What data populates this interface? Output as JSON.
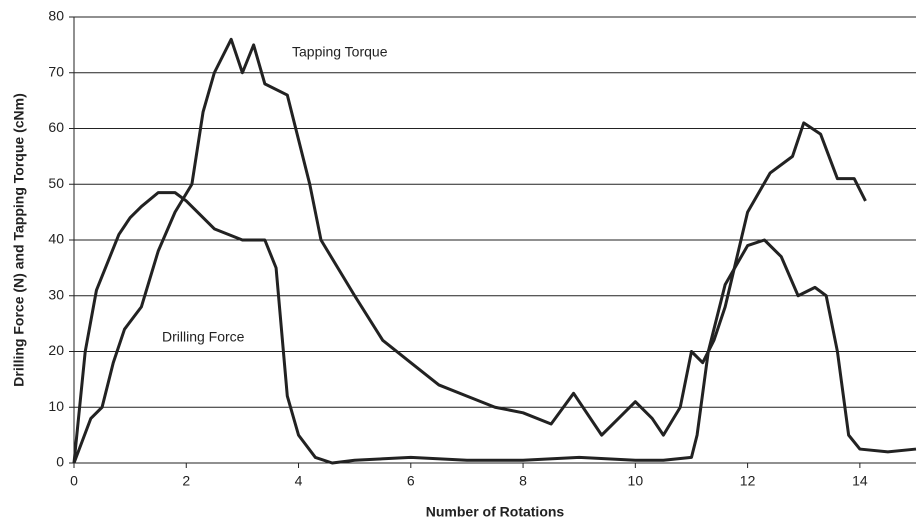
{
  "chart_data": {
    "type": "line",
    "x_label": "Number of Rotations",
    "y_label": "Drilling Force (N) and Tapping Torque (cNm)",
    "xlim": [
      0,
      15
    ],
    "xticks": [
      0,
      2,
      4,
      6,
      8,
      10,
      12,
      14
    ],
    "ylim": [
      0,
      80
    ],
    "yticks": [
      0,
      10,
      20,
      30,
      40,
      50,
      60,
      70,
      80
    ],
    "grid": true,
    "series": [
      {
        "name": "Drilling Force",
        "color": "#222222",
        "x": [
          0,
          0.2,
          0.4,
          0.6,
          0.8,
          1.0,
          1.2,
          1.5,
          1.8,
          2.0,
          2.5,
          3.0,
          3.4,
          3.6,
          3.8,
          4.0,
          4.3,
          4.6,
          5,
          6,
          7,
          8,
          9,
          10,
          10.5,
          11,
          11.1,
          11.3,
          11.6,
          12,
          12.3,
          12.6,
          12.9,
          13.2,
          13.4,
          13.6,
          13.8,
          14,
          14.5,
          15
        ],
        "values": [
          0,
          20,
          31,
          36,
          41,
          44,
          46,
          48.5,
          48.5,
          47,
          42,
          40,
          40,
          35,
          12,
          5,
          1,
          0,
          0.5,
          1,
          0.5,
          0.5,
          1,
          0.5,
          0.5,
          1,
          5,
          20,
          32,
          39,
          40,
          37,
          30,
          31.5,
          30,
          20,
          5,
          2.5,
          2,
          2.5
        ]
      },
      {
        "name": "Tapping Torque",
        "color": "#222222",
        "x": [
          0,
          0.3,
          0.5,
          0.7,
          0.9,
          1.2,
          1.5,
          1.8,
          2.1,
          2.3,
          2.5,
          2.8,
          3.0,
          3.2,
          3.4,
          3.8,
          4.0,
          4.2,
          4.4,
          4.7,
          5.0,
          5.5,
          6.0,
          6.5,
          7.0,
          7.5,
          8.0,
          8.5,
          8.9,
          9.4,
          9.7,
          10.0,
          10.3,
          10.5,
          10.8,
          11.0,
          11.2,
          11.4,
          11.6,
          12.0,
          12.4,
          12.8,
          13.0,
          13.3,
          13.6,
          13.9,
          14.1
        ],
        "values": [
          0,
          8,
          10,
          18,
          24,
          28,
          38,
          45,
          50,
          63,
          70,
          76,
          70,
          75,
          68,
          66,
          58,
          50,
          40,
          35,
          30,
          22,
          18,
          14,
          12,
          10,
          9,
          7,
          12.5,
          5,
          8,
          11,
          8,
          5,
          10,
          20,
          18,
          22,
          28,
          45,
          52,
          55,
          61,
          59,
          51,
          51,
          47
        ]
      }
    ]
  }
}
